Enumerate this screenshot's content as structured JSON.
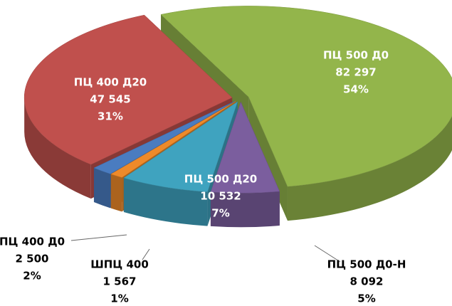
{
  "chart_data": {
    "type": "pie",
    "categories": [
      "ПЦ 500 Д0",
      "ПЦ 500 Д0-Н",
      "ПЦ 500 Д20",
      "ШПЦ 400",
      "ПЦ 400 Д0",
      "ПЦ 400 Д20"
    ],
    "values": [
      82297,
      8092,
      10532,
      1567,
      2500,
      47545
    ],
    "value_labels": [
      "82 297",
      "8 092",
      "10 532",
      "1 567",
      "2 500",
      "47 545"
    ],
    "percents": [
      54,
      5,
      7,
      1,
      2,
      31
    ],
    "percent_labels": [
      "54%",
      "5%",
      "7%",
      "1%",
      "2%",
      "31%"
    ],
    "colors": [
      "#93b54b",
      "#7b5e9e",
      "#3fa3bf",
      "#ee8a2a",
      "#4a7cc0",
      "#c0504d"
    ]
  }
}
